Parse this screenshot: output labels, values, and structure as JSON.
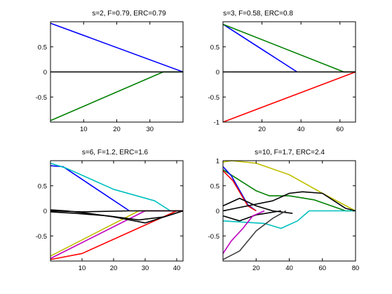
{
  "chart_data": [
    {
      "type": "line",
      "title": "s=2, F=0.79, ERC=0.79",
      "xlabel": "",
      "ylabel": "",
      "xlim": [
        0,
        40
      ],
      "ylim": [
        -1,
        1
      ],
      "xticks": [
        10,
        20,
        30
      ],
      "yticks": [
        0.5,
        0,
        -0.5
      ],
      "xtick_labels": [
        "10",
        "20",
        "30"
      ],
      "ytick_labels": [
        "0.5",
        "0",
        "-0.5"
      ],
      "grid": false,
      "series": [
        {
          "color": "#0000ff",
          "x": [
            0,
            40
          ],
          "y": [
            0.97,
            0
          ]
        },
        {
          "color": "#008000",
          "x": [
            0,
            34,
            40
          ],
          "y": [
            -0.97,
            0,
            0
          ]
        },
        {
          "color": "#000000",
          "x": [
            0,
            2,
            40
          ],
          "y": [
            0,
            0,
            0
          ]
        }
      ]
    },
    {
      "type": "line",
      "title": "s=3, F=0.58, ERC=0.8",
      "xlabel": "",
      "ylabel": "",
      "xlim": [
        0,
        68
      ],
      "ylim": [
        -1,
        1
      ],
      "xticks": [
        20,
        40,
        60
      ],
      "yticks": [
        0.5,
        0,
        -0.5,
        -1
      ],
      "xtick_labels": [
        "20",
        "40",
        "60"
      ],
      "ytick_labels": [
        "0.5",
        "0",
        "-0.5",
        "-1"
      ],
      "grid": false,
      "series": [
        {
          "color": "#0000ff",
          "x": [
            0,
            38
          ],
          "y": [
            0.95,
            0
          ]
        },
        {
          "color": "#008000",
          "x": [
            0,
            62,
            68
          ],
          "y": [
            0.95,
            0,
            0
          ]
        },
        {
          "color": "#ff0000",
          "x": [
            0,
            68
          ],
          "y": [
            -1,
            0
          ]
        },
        {
          "color": "#000000",
          "x": [
            0,
            68
          ],
          "y": [
            0,
            0
          ]
        }
      ]
    },
    {
      "type": "line",
      "title": "s=6, F=1.2, ERC=1.6",
      "xlabel": "",
      "ylabel": "",
      "xlim": [
        0,
        42
      ],
      "ylim": [
        -1,
        1
      ],
      "xticks": [
        10,
        20,
        30,
        40
      ],
      "yticks": [
        0.5,
        0,
        -0.5
      ],
      "xtick_labels": [
        "10",
        "20",
        "30",
        "40"
      ],
      "ytick_labels": [
        "0.5",
        "0",
        "-0.5"
      ],
      "grid": false,
      "series": [
        {
          "color": "#0000ff",
          "x": [
            0,
            4,
            25
          ],
          "y": [
            0.9,
            0.88,
            0
          ]
        },
        {
          "color": "#00bfbf",
          "x": [
            0,
            5,
            20,
            33,
            38
          ],
          "y": [
            0.95,
            0.85,
            0.43,
            0.2,
            0
          ]
        },
        {
          "color": "#bfbf00",
          "x": [
            0,
            28,
            42
          ],
          "y": [
            -0.9,
            0,
            0
          ]
        },
        {
          "color": "#bf00bf",
          "x": [
            0,
            30,
            42
          ],
          "y": [
            -0.95,
            0,
            0
          ]
        },
        {
          "color": "#ff0000",
          "x": [
            0,
            10,
            40,
            42
          ],
          "y": [
            -0.97,
            -0.85,
            0,
            0
          ]
        },
        {
          "color": "#000000",
          "x": [
            0,
            5,
            12,
            20,
            30,
            42
          ],
          "y": [
            0.02,
            0.0,
            -0.05,
            -0.12,
            -0.24,
            0
          ]
        },
        {
          "color": "#000000",
          "x": [
            0,
            8,
            18,
            28,
            36,
            42
          ],
          "y": [
            -0.02,
            -0.05,
            -0.1,
            -0.18,
            -0.12,
            0
          ]
        },
        {
          "color": "#000000",
          "x": [
            0,
            10,
            25,
            42
          ],
          "y": [
            0.0,
            -0.02,
            0.0,
            0
          ]
        }
      ]
    },
    {
      "type": "line",
      "title": "s=10, F=1.7, ERC=2.4",
      "xlabel": "",
      "ylabel": "",
      "xlim": [
        0,
        80
      ],
      "ylim": [
        -1,
        1
      ],
      "xticks": [
        20,
        40,
        60,
        80
      ],
      "yticks": [
        1,
        0.5,
        0,
        -0.5
      ],
      "xtick_labels": [
        "20",
        "40",
        "60",
        "80"
      ],
      "ytick_labels": [
        "1",
        "0.5",
        "0",
        "-0.5"
      ],
      "grid": false,
      "series": [
        {
          "color": "#bfbf00",
          "x": [
            0,
            5,
            20,
            40,
            60,
            80
          ],
          "y": [
            0.97,
            1.0,
            0.95,
            0.72,
            0.35,
            0
          ]
        },
        {
          "color": "#008000",
          "x": [
            0,
            20,
            28,
            40,
            55,
            74,
            80
          ],
          "y": [
            0.82,
            0.4,
            0.3,
            0.3,
            0.22,
            0,
            0
          ]
        },
        {
          "color": "#0000ff",
          "x": [
            0,
            5,
            15,
            20
          ],
          "y": [
            0.88,
            0.7,
            0.12,
            0
          ]
        },
        {
          "color": "#ff0000",
          "x": [
            0,
            6,
            15,
            20
          ],
          "y": [
            0.8,
            0.6,
            0.1,
            0
          ]
        },
        {
          "color": "#000000",
          "x": [
            0,
            30,
            40,
            48,
            60,
            74,
            80
          ],
          "y": [
            0.0,
            0.2,
            0.35,
            0.38,
            0.35,
            0.05,
            0
          ]
        },
        {
          "color": "#000000",
          "x": [
            0,
            10,
            20,
            30,
            42
          ],
          "y": [
            0.1,
            0.25,
            0.1,
            0.0,
            -0.05
          ]
        },
        {
          "color": "#000000",
          "x": [
            0,
            10,
            20,
            35
          ],
          "y": [
            -0.1,
            -0.2,
            -0.08,
            0.0
          ]
        },
        {
          "color": "#00bfbf",
          "x": [
            0,
            25,
            35,
            45,
            52,
            80
          ],
          "y": [
            -0.2,
            -0.25,
            -0.35,
            -0.2,
            0,
            0
          ]
        },
        {
          "color": "#bf00bf",
          "x": [
            0,
            5,
            12,
            18,
            25
          ],
          "y": [
            -0.85,
            -0.6,
            -0.35,
            -0.1,
            0
          ]
        },
        {
          "color": "#404040",
          "x": [
            0,
            10,
            20,
            30,
            38
          ],
          "y": [
            -0.97,
            -0.8,
            -0.4,
            -0.15,
            0
          ]
        }
      ]
    }
  ]
}
